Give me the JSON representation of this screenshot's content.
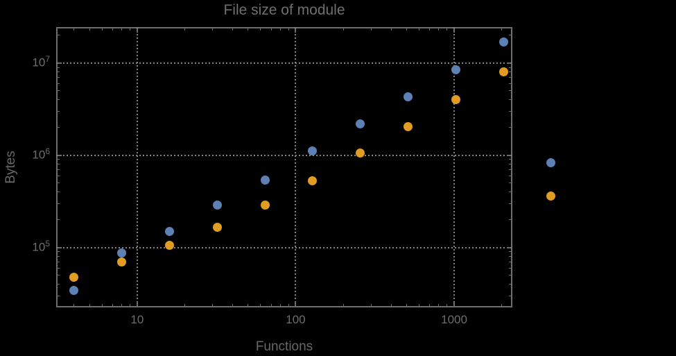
{
  "chart_data": {
    "type": "scatter",
    "title": "File size of module",
    "xlabel": "Functions",
    "ylabel": "Bytes",
    "x_scale": "log",
    "y_scale": "log",
    "grid": "dotted",
    "legend": "none",
    "background_color": "#000000",
    "frame_color": "#6e6e6e",
    "grid_color": "#828282",
    "text_color": "#6e6e6e",
    "x_tick_values": [
      10,
      100,
      1000
    ],
    "x_tick_labels": [
      "10",
      "100",
      "1000"
    ],
    "y_tick_base": "10",
    "y_tick_exponents": [
      5,
      6,
      7
    ],
    "x_range": [
      3.08,
      2330
    ],
    "y_range": [
      22400,
      24600000
    ],
    "x": [
      4,
      8,
      16,
      32,
      64,
      128,
      256,
      512,
      1024,
      2048,
      4096
    ],
    "series": [
      {
        "name": "series-1-blue",
        "color": "#5E81B5",
        "values": [
          34000,
          87000,
          150000,
          290000,
          540000,
          1110000,
          2200000,
          4300000,
          8500000,
          16900000,
          830000
        ]
      },
      {
        "name": "series-2-orange",
        "color": "#E19C24",
        "values": [
          48000,
          70000,
          106000,
          166000,
          290000,
          530000,
          1050000,
          2060000,
          4040000,
          8100000,
          360000
        ]
      }
    ]
  }
}
